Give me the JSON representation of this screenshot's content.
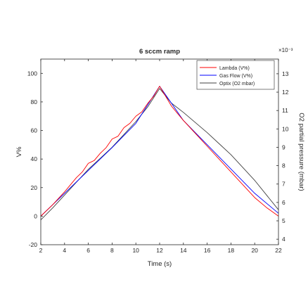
{
  "chart_data": {
    "type": "line",
    "title": "6 sccm ramp",
    "xlabel": "Time (s)",
    "ylabel_left": "V%",
    "ylabel_right": "O2 partial pressure (mbar)",
    "right_axis_exponent": "×10⁻³",
    "xlim": [
      2,
      22
    ],
    "ylim_left": [
      -20,
      110
    ],
    "ylim_right": [
      3.7,
      13.8
    ],
    "x_ticks": [
      "2",
      "4",
      "6",
      "8",
      "10",
      "12",
      "14",
      "16",
      "18",
      "20",
      "22"
    ],
    "y_left_ticks": [
      "-20",
      "0",
      "20",
      "40",
      "60",
      "80",
      "100"
    ],
    "y_right_ticks": [
      "4",
      "5",
      "6",
      "7",
      "8",
      "9",
      "10",
      "11",
      "12",
      "13"
    ],
    "grid": false,
    "legend_position": "top-right",
    "colors": {
      "Lambda (V%)": "#ff0000",
      "Gas Flow (V%)": "#0000ff",
      "Optix (O2 mbar)": "#404040"
    },
    "series": [
      {
        "name": "Lambda (V%)",
        "axis": "left",
        "x": [
          2,
          3,
          4,
          4.5,
          5,
          5.5,
          6,
          6.5,
          7,
          7.5,
          8,
          8.5,
          9,
          9.5,
          10,
          10.5,
          11,
          11.5,
          12,
          12.5,
          13,
          13.5,
          14,
          15,
          16,
          17,
          18,
          19,
          20,
          21,
          22
        ],
        "y": [
          0,
          8,
          17,
          22,
          27,
          31,
          37,
          39,
          44,
          48,
          54,
          56,
          62,
          65,
          70,
          73,
          79,
          84,
          91,
          84,
          77,
          72,
          67,
          58,
          49,
          40,
          31,
          22,
          13,
          6,
          0
        ]
      },
      {
        "name": "Gas Flow (V%)",
        "axis": "left",
        "x": [
          2,
          4,
          6,
          8,
          10,
          12,
          14,
          16,
          18,
          20,
          22
        ],
        "y": [
          0,
          16,
          32,
          48,
          65,
          91,
          67,
          50,
          33,
          16,
          2
        ]
      },
      {
        "name": "Optix (O2 mbar)",
        "axis": "right",
        "x": [
          2,
          3,
          4,
          5,
          6,
          7,
          8,
          9,
          10,
          11,
          11.5,
          12,
          12.5,
          13,
          14,
          15,
          16,
          17,
          18,
          19,
          20,
          21,
          22
        ],
        "y": [
          5.05,
          5.7,
          6.4,
          7.1,
          7.8,
          8.4,
          9.0,
          9.7,
          10.4,
          11.2,
          11.7,
          12.2,
          11.8,
          11.4,
          10.9,
          10.35,
          9.8,
          9.2,
          8.6,
          7.9,
          7.2,
          6.4,
          5.6
        ]
      }
    ]
  }
}
